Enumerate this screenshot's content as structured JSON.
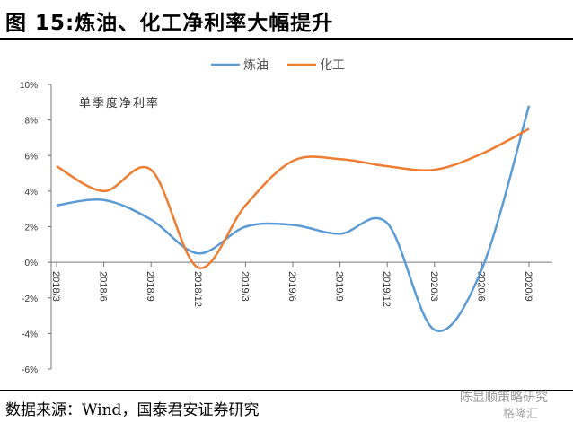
{
  "title": "图 15:炼油、化工净利率大幅提升",
  "source": "数据来源：Wind，国泰君安证券研究",
  "watermark": [
    "陈显顺策略研究",
    "格隆汇"
  ],
  "chart_data": {
    "type": "line",
    "title": "图 15:炼油、化工净利率大幅提升",
    "annotation": "单季度净利率",
    "xlabel": "",
    "ylabel": "",
    "categories": [
      "2018/3",
      "2018/6",
      "2018/9",
      "2018/12",
      "2019/3",
      "2019/6",
      "2019/9",
      "2019/12",
      "2020/3",
      "2020/6",
      "2020/9"
    ],
    "ylim": [
      -6,
      10
    ],
    "yticks": [
      10,
      8,
      6,
      4,
      2,
      0,
      -2,
      -4,
      -6
    ],
    "ytick_labels": [
      "10%",
      "8%",
      "6%",
      "4%",
      "2%",
      "0%",
      "-2%",
      "-4%",
      "-6%"
    ],
    "legend_position": "top-right",
    "grid": false,
    "series": [
      {
        "name": "炼油",
        "color": "#5B9BD5",
        "values": [
          3.2,
          3.5,
          2.4,
          0.5,
          2.0,
          2.1,
          1.6,
          2.2,
          -3.8,
          -0.4,
          8.8
        ]
      },
      {
        "name": "化工",
        "color": "#ED7D31",
        "values": [
          5.4,
          4.0,
          5.2,
          -0.3,
          3.2,
          5.7,
          5.8,
          5.4,
          5.2,
          6.1,
          7.5
        ]
      }
    ]
  }
}
